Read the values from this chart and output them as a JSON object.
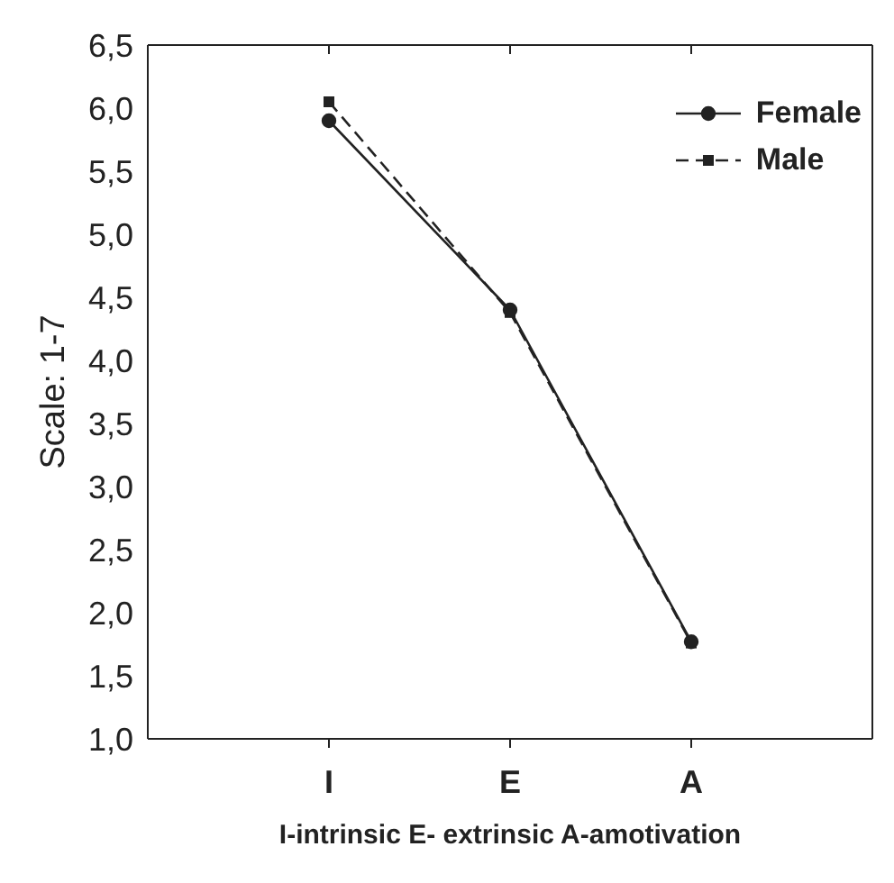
{
  "chart_data": {
    "type": "line",
    "xlabel": "I-intrinsic  E- extrinsic  A-amotivation",
    "ylabel": "Scale: 1-7",
    "categories": [
      "I",
      "E",
      "A"
    ],
    "series": [
      {
        "name": "Female",
        "color": "#222222",
        "values": [
          5.9,
          4.4,
          1.77
        ],
        "marker": "circle",
        "line_style": "solid"
      },
      {
        "name": "Male",
        "color": "#222222",
        "values": [
          6.05,
          4.38,
          1.76
        ],
        "marker": "square",
        "line_style": "dashed"
      }
    ],
    "ylim": [
      1.0,
      6.5
    ],
    "yticks": [
      {
        "value": 1.0,
        "label": "1,0"
      },
      {
        "value": 1.5,
        "label": "1,5"
      },
      {
        "value": 2.0,
        "label": "2,0"
      },
      {
        "value": 2.5,
        "label": "2,5"
      },
      {
        "value": 3.0,
        "label": "3,0"
      },
      {
        "value": 3.5,
        "label": "3,5"
      },
      {
        "value": 4.0,
        "label": "4,0"
      },
      {
        "value": 4.5,
        "label": "4,5"
      },
      {
        "value": 5.0,
        "label": "5,0"
      },
      {
        "value": 5.5,
        "label": "5,5"
      },
      {
        "value": 6.0,
        "label": "6,0"
      },
      {
        "value": 6.5,
        "label": "6,5"
      }
    ],
    "grid": false,
    "legend": "top right"
  }
}
